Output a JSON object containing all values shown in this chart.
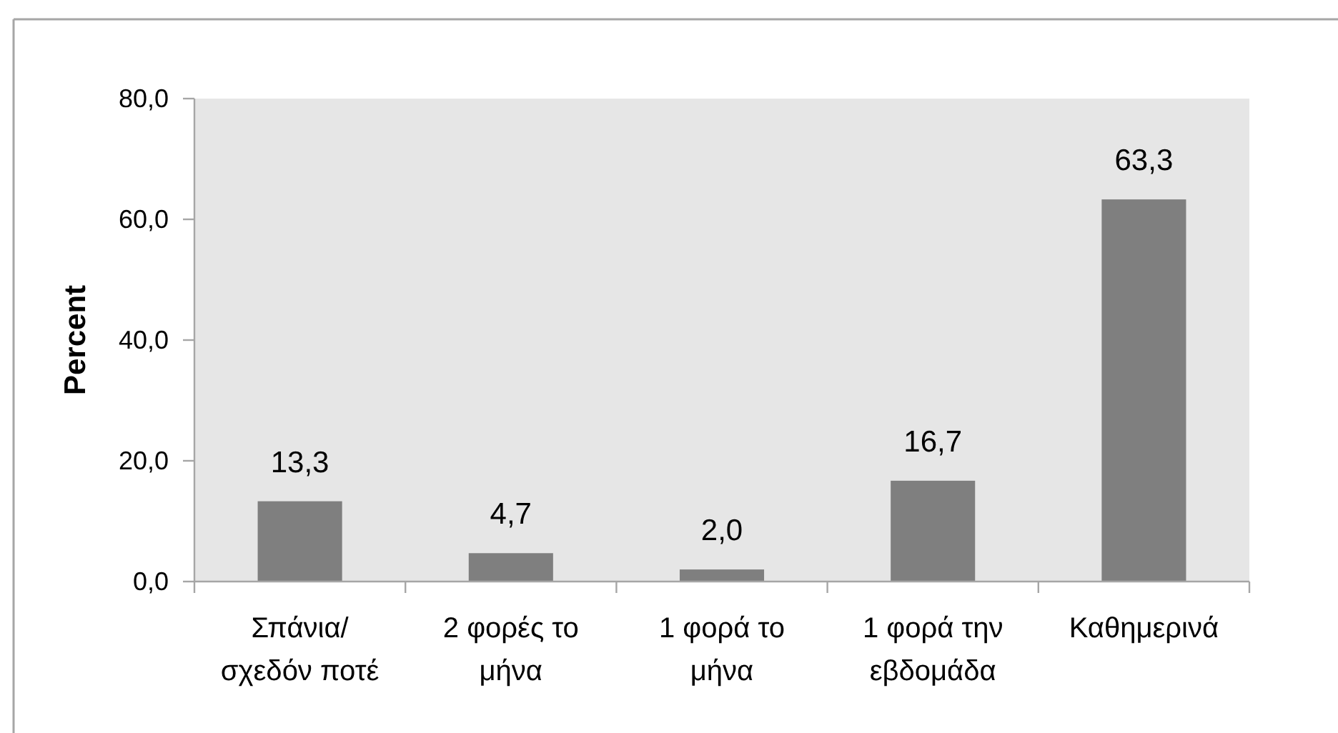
{
  "chart_data": {
    "type": "bar",
    "ylabel": "Percent",
    "categories": [
      "Σπάνια/ σχεδόν ποτέ",
      "2 φορές το μήνα",
      "1 φορά το μήνα",
      "1 φορά την εβδομάδα",
      "Καθημερινά"
    ],
    "values": [
      13.3,
      4.7,
      2.0,
      16.7,
      63.3
    ],
    "color": "#7f7f7f",
    "value_labels": [
      "13,3",
      "4,7",
      "2,0",
      "16,7",
      "63,3"
    ],
    "ylim": [
      0,
      80
    ],
    "yticks": [
      {
        "value": 0,
        "label": "0,0"
      },
      {
        "value": 20,
        "label": "20,0"
      },
      {
        "value": 40,
        "label": "40,0"
      },
      {
        "value": 60,
        "label": "60,0"
      },
      {
        "value": 80,
        "label": "80,0"
      }
    ]
  }
}
